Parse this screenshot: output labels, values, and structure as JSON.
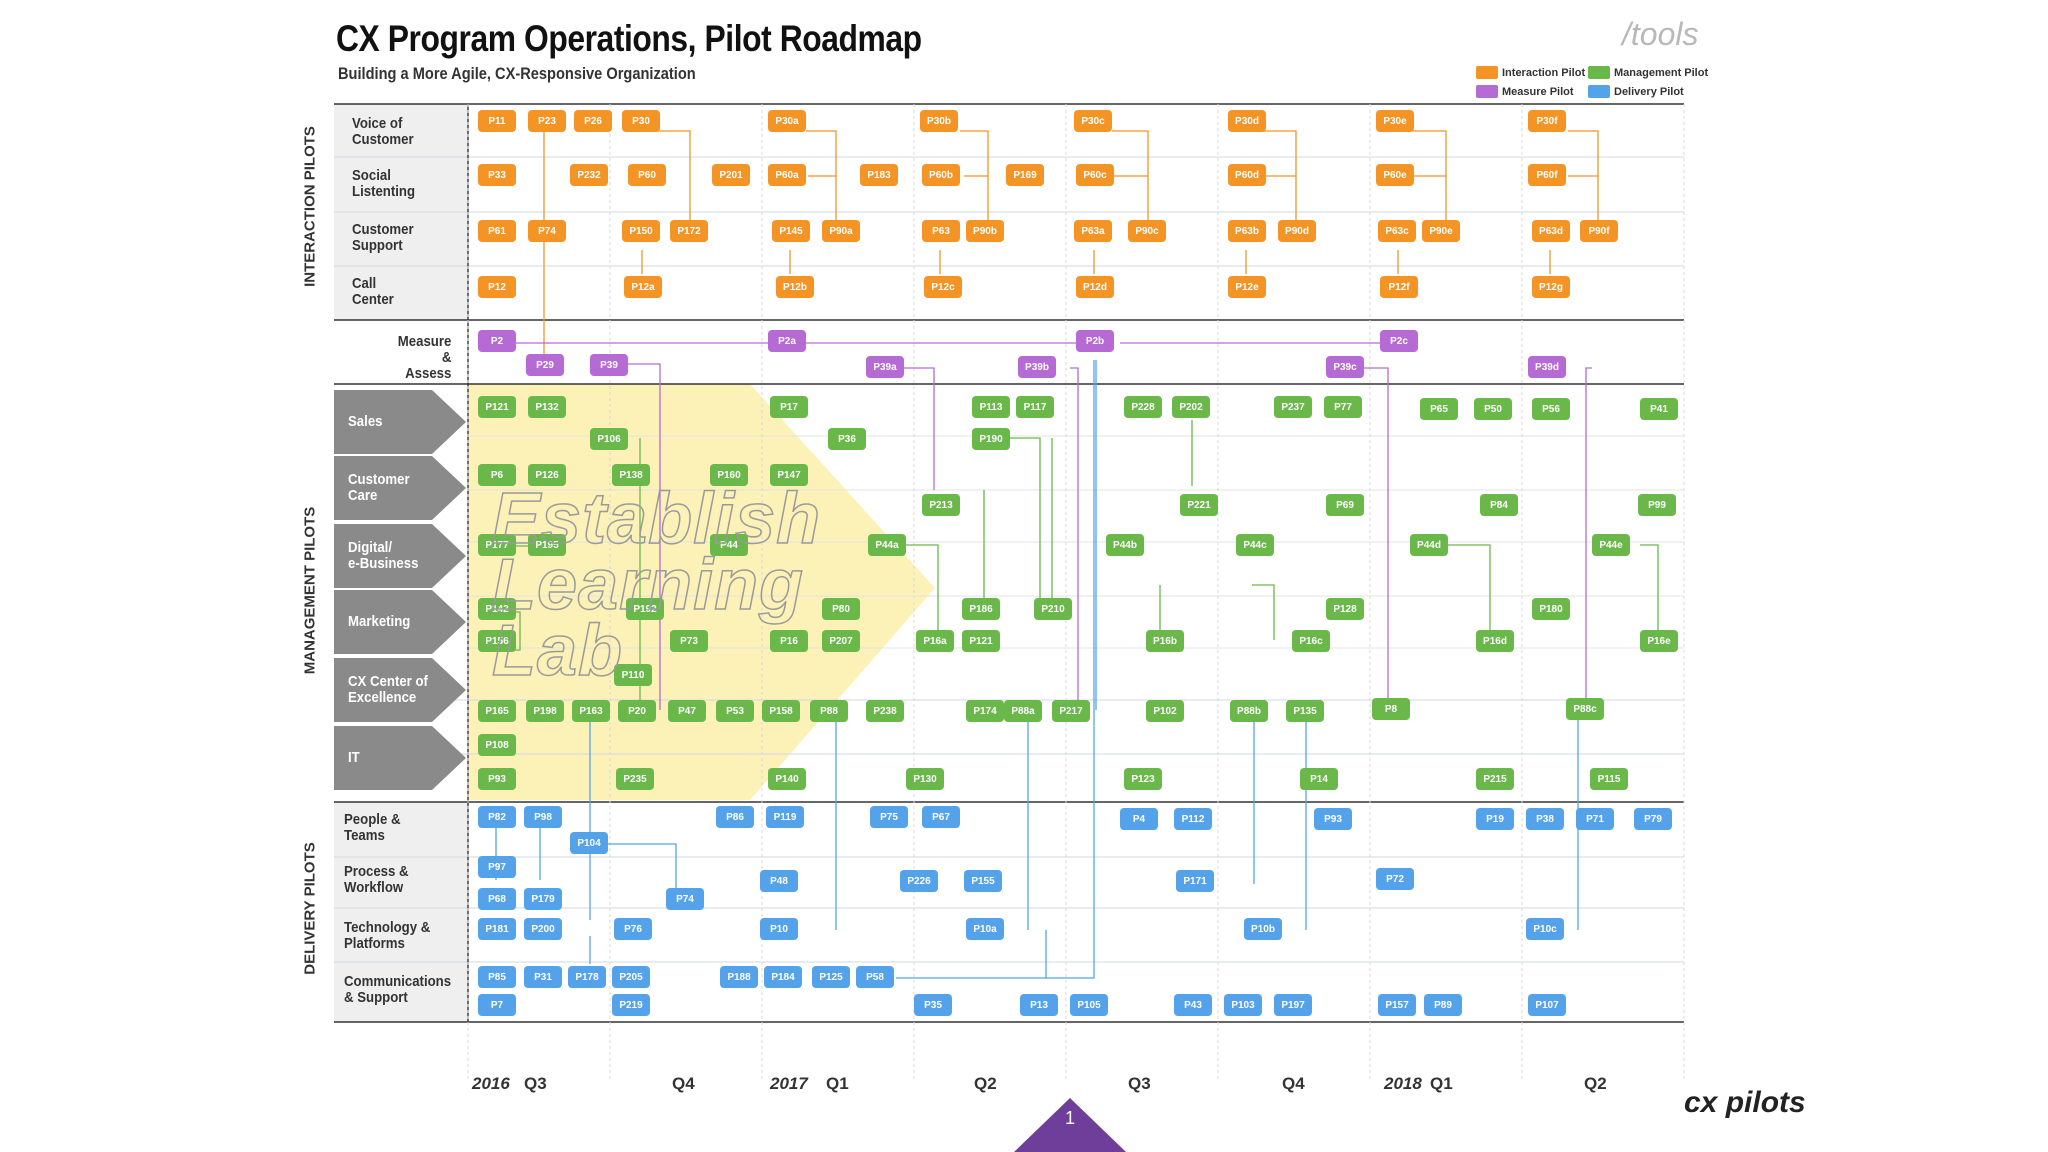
{
  "header": {
    "title": "CX Program Operations, Pilot Roadmap",
    "subtitle": "Building a More Agile, CX-Responsive Organization",
    "tools_label": "/tools",
    "brand": "cx pilots",
    "page_number": "1"
  },
  "legend": [
    {
      "label": "Interaction Pilot",
      "color": "#f39425"
    },
    {
      "label": "Management Pilot",
      "color": "#6ab84a"
    },
    {
      "label": "Measure Pilot",
      "color": "#b66ad3"
    },
    {
      "label": "Delivery Pilot",
      "color": "#54a3ea"
    }
  ],
  "groups": {
    "interaction": "INTERACTION PILOTS",
    "management": "MANAGEMENT PILOTS",
    "delivery": "DELIVERY PILOTS"
  },
  "rows": {
    "voice": "Voice of\nCustomer",
    "social": "Social\nListenting",
    "support": "Customer\nSupport",
    "callcenter": "Call\nCenter",
    "measure": "Measure &\nAssess",
    "sales": "Sales",
    "care": "Customer\nCare",
    "digital": "Digital/\ne-Business",
    "marketing": "Marketing",
    "coe": "CX Center of\nExcellence",
    "it": "IT",
    "people": "People &\nTeams",
    "process": "Process &\nWorkflow",
    "tech": "Technology &\nPlatforms",
    "comms": "Communications\n& Support"
  },
  "watermark": "Establish\nLearning\nLab",
  "timeline": {
    "labels": [
      {
        "text": "2016",
        "kind": "year"
      },
      {
        "text": "Q3",
        "kind": "q"
      },
      {
        "text": "Q4",
        "kind": "q"
      },
      {
        "text": "2017",
        "kind": "year"
      },
      {
        "text": "Q1",
        "kind": "q"
      },
      {
        "text": "Q2",
        "kind": "q"
      },
      {
        "text": "Q3",
        "kind": "q"
      },
      {
        "text": "Q4",
        "kind": "q"
      },
      {
        "text": "2018",
        "kind": "year"
      },
      {
        "text": "Q1",
        "kind": "q"
      },
      {
        "text": "Q2",
        "kind": "q"
      }
    ]
  },
  "pilots": {
    "interaction": [
      "P11",
      "P23",
      "P26",
      "P30",
      "P30a",
      "P30b",
      "P30c",
      "P30d",
      "P30e",
      "P30f",
      "P33",
      "P232",
      "P60",
      "P201",
      "P60a",
      "P183",
      "P60b",
      "P169",
      "P60c",
      "P60d",
      "P60e",
      "P60f",
      "P61",
      "P74",
      "P150",
      "P172",
      "P145",
      "P90a",
      "P63",
      "P90b",
      "P63a",
      "P90c",
      "P63b",
      "P90d",
      "P63c",
      "P90e",
      "P63d",
      "P90f",
      "P12",
      "P12a",
      "P12b",
      "P12c",
      "P12d",
      "P12e",
      "P12f",
      "P12g"
    ],
    "measure": [
      "P2",
      "P2a",
      "P2b",
      "P2c",
      "P29",
      "P39",
      "P39a",
      "P39b",
      "P39c",
      "P39d"
    ],
    "management": [
      "P121",
      "P132",
      "P17",
      "P113",
      "P117",
      "P228",
      "P202",
      "P237",
      "P77",
      "P65",
      "P50",
      "P56",
      "P41",
      "P106",
      "P36",
      "P190",
      "P6",
      "P126",
      "P138",
      "P160",
      "P147",
      "P213",
      "P221",
      "P69",
      "P84",
      "P99",
      "P177",
      "P195",
      "P44",
      "P44a",
      "P44b",
      "P44c",
      "P44d",
      "P44e",
      "P142",
      "P192",
      "P80",
      "P186",
      "P210",
      "P128",
      "P180",
      "P156",
      "P73",
      "P16",
      "P207",
      "P16a",
      "P121",
      "P16b",
      "P16c",
      "P16d",
      "P16e",
      "P110",
      "P165",
      "P198",
      "P163",
      "P20",
      "P47",
      "P53",
      "P158",
      "P88",
      "P238",
      "P174",
      "P88a",
      "P217",
      "P102",
      "P88b",
      "P135",
      "P8",
      "P88c",
      "P108",
      "P93",
      "P235",
      "P140",
      "P130",
      "P123",
      "P14",
      "P215",
      "P115"
    ],
    "delivery": [
      "P82",
      "P98",
      "P86",
      "P119",
      "P75",
      "P67",
      "P4",
      "P112",
      "P93",
      "P19",
      "P38",
      "P71",
      "P79",
      "P104",
      "P97",
      "P48",
      "P226",
      "P155",
      "P171",
      "P72",
      "P68",
      "P179",
      "P74",
      "P181",
      "P200",
      "P76",
      "P10",
      "P10a",
      "P10b",
      "P10c",
      "P85",
      "P31",
      "P178",
      "P205",
      "P188",
      "P184",
      "P125",
      "P58",
      "P7",
      "P219",
      "P35",
      "P13",
      "P105",
      "P43",
      "P103",
      "P197",
      "P157",
      "P89",
      "P107"
    ]
  }
}
